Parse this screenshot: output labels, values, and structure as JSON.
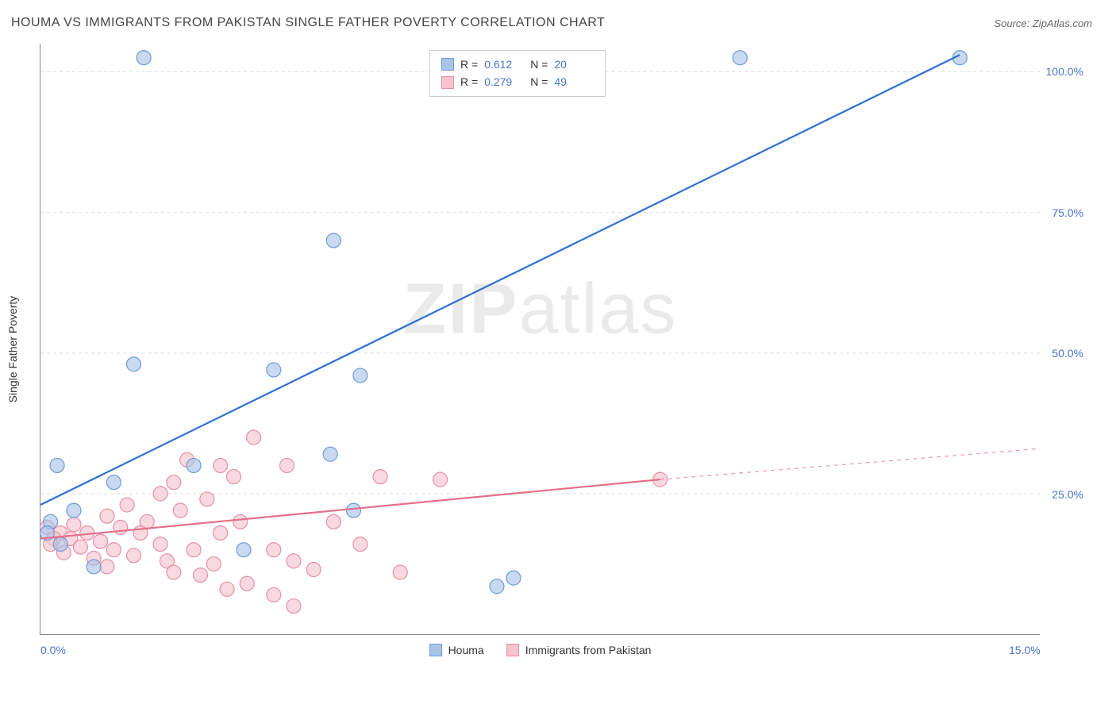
{
  "title": "HOUMA VS IMMIGRANTS FROM PAKISTAN SINGLE FATHER POVERTY CORRELATION CHART",
  "source_label": "Source: ZipAtlas.com",
  "watermark": "ZIPatlas",
  "yaxis_title": "Single Father Poverty",
  "chart": {
    "type": "scatter",
    "xlim": [
      0,
      15
    ],
    "ylim": [
      0,
      105
    ],
    "xticks": [
      {
        "value": 0,
        "label": "0.0%"
      },
      {
        "value": 15,
        "label": "15.0%"
      }
    ],
    "yticks": [
      {
        "value": 25,
        "label": "25.0%"
      },
      {
        "value": 50,
        "label": "50.0%"
      },
      {
        "value": 75,
        "label": "75.0%"
      },
      {
        "value": 100,
        "label": "100.0%"
      }
    ],
    "background_color": "#ffffff",
    "grid_color": "#dddddd",
    "axis_color": "#888888",
    "marker_radius": 9,
    "marker_stroke_width": 1.2,
    "line_width": 2.2,
    "series": [
      {
        "name": "Houma",
        "color_fill": "#aac4e8",
        "color_stroke": "#6f9bd8",
        "line_color": "#2f6fd0",
        "R": "0.612",
        "N": "20",
        "trend": {
          "x1": 0,
          "y1": 23,
          "x2": 13.8,
          "y2": 103,
          "extend_x2": 13.8,
          "extend_y2": 103
        },
        "points": [
          {
            "x": 1.55,
            "y": 102.5
          },
          {
            "x": 10.5,
            "y": 102.5
          },
          {
            "x": 13.8,
            "y": 102.5
          },
          {
            "x": 4.4,
            "y": 70
          },
          {
            "x": 1.4,
            "y": 48
          },
          {
            "x": 3.5,
            "y": 47
          },
          {
            "x": 4.8,
            "y": 46
          },
          {
            "x": 4.35,
            "y": 32
          },
          {
            "x": 0.25,
            "y": 30
          },
          {
            "x": 2.3,
            "y": 30
          },
          {
            "x": 1.1,
            "y": 27
          },
          {
            "x": 0.15,
            "y": 20
          },
          {
            "x": 0.5,
            "y": 22
          },
          {
            "x": 4.7,
            "y": 22
          },
          {
            "x": 0.1,
            "y": 18
          },
          {
            "x": 0.8,
            "y": 12
          },
          {
            "x": 3.05,
            "y": 15
          },
          {
            "x": 0.3,
            "y": 16
          },
          {
            "x": 7.1,
            "y": 10
          },
          {
            "x": 6.85,
            "y": 8.5
          }
        ]
      },
      {
        "name": "Immigrants from Pakistan",
        "color_fill": "#f5c4ce",
        "color_stroke": "#e88fa3",
        "line_color": "#e36f8b",
        "R": "0.279",
        "N": "49",
        "trend": {
          "x1": 0,
          "y1": 17,
          "x2": 9.3,
          "y2": 27.5,
          "extend_x2": 15,
          "extend_y2": 33
        },
        "points": [
          {
            "x": 3.2,
            "y": 35
          },
          {
            "x": 2.2,
            "y": 31
          },
          {
            "x": 2.7,
            "y": 30
          },
          {
            "x": 3.7,
            "y": 30
          },
          {
            "x": 2.9,
            "y": 28
          },
          {
            "x": 5.1,
            "y": 28
          },
          {
            "x": 6.0,
            "y": 27.5
          },
          {
            "x": 2.0,
            "y": 27
          },
          {
            "x": 9.3,
            "y": 27.5
          },
          {
            "x": 1.8,
            "y": 25
          },
          {
            "x": 2.5,
            "y": 24
          },
          {
            "x": 1.3,
            "y": 23
          },
          {
            "x": 2.1,
            "y": 22
          },
          {
            "x": 1.0,
            "y": 21
          },
          {
            "x": 1.6,
            "y": 20
          },
          {
            "x": 3.0,
            "y": 20
          },
          {
            "x": 4.4,
            "y": 20
          },
          {
            "x": 0.5,
            "y": 19.5
          },
          {
            "x": 0.1,
            "y": 19
          },
          {
            "x": 1.2,
            "y": 19
          },
          {
            "x": 0.3,
            "y": 18
          },
          {
            "x": 0.7,
            "y": 18
          },
          {
            "x": 1.5,
            "y": 18
          },
          {
            "x": 2.7,
            "y": 18
          },
          {
            "x": 0.2,
            "y": 17
          },
          {
            "x": 0.45,
            "y": 17
          },
          {
            "x": 0.9,
            "y": 16.5
          },
          {
            "x": 1.8,
            "y": 16
          },
          {
            "x": 4.8,
            "y": 16
          },
          {
            "x": 0.15,
            "y": 16
          },
          {
            "x": 0.6,
            "y": 15.5
          },
          {
            "x": 1.1,
            "y": 15
          },
          {
            "x": 2.3,
            "y": 15
          },
          {
            "x": 3.5,
            "y": 15
          },
          {
            "x": 1.4,
            "y": 14
          },
          {
            "x": 0.35,
            "y": 14.5
          },
          {
            "x": 0.8,
            "y": 13.5
          },
          {
            "x": 1.9,
            "y": 13
          },
          {
            "x": 2.6,
            "y": 12.5
          },
          {
            "x": 3.8,
            "y": 13
          },
          {
            "x": 1.0,
            "y": 12
          },
          {
            "x": 4.1,
            "y": 11.5
          },
          {
            "x": 2.4,
            "y": 10.5
          },
          {
            "x": 5.4,
            "y": 11
          },
          {
            "x": 3.1,
            "y": 9
          },
          {
            "x": 3.5,
            "y": 7
          },
          {
            "x": 3.8,
            "y": 5
          },
          {
            "x": 2.8,
            "y": 8
          },
          {
            "x": 2.0,
            "y": 11
          }
        ]
      }
    ]
  },
  "legend_bottom": [
    {
      "label": "Houma",
      "swatch_fill": "#aac4e8",
      "swatch_stroke": "#6f9bd8"
    },
    {
      "label": "Immigrants from Pakistan",
      "swatch_fill": "#f5c4ce",
      "swatch_stroke": "#e88fa3"
    }
  ],
  "legend_top_labels": {
    "R": "R  =",
    "N": "N  ="
  }
}
